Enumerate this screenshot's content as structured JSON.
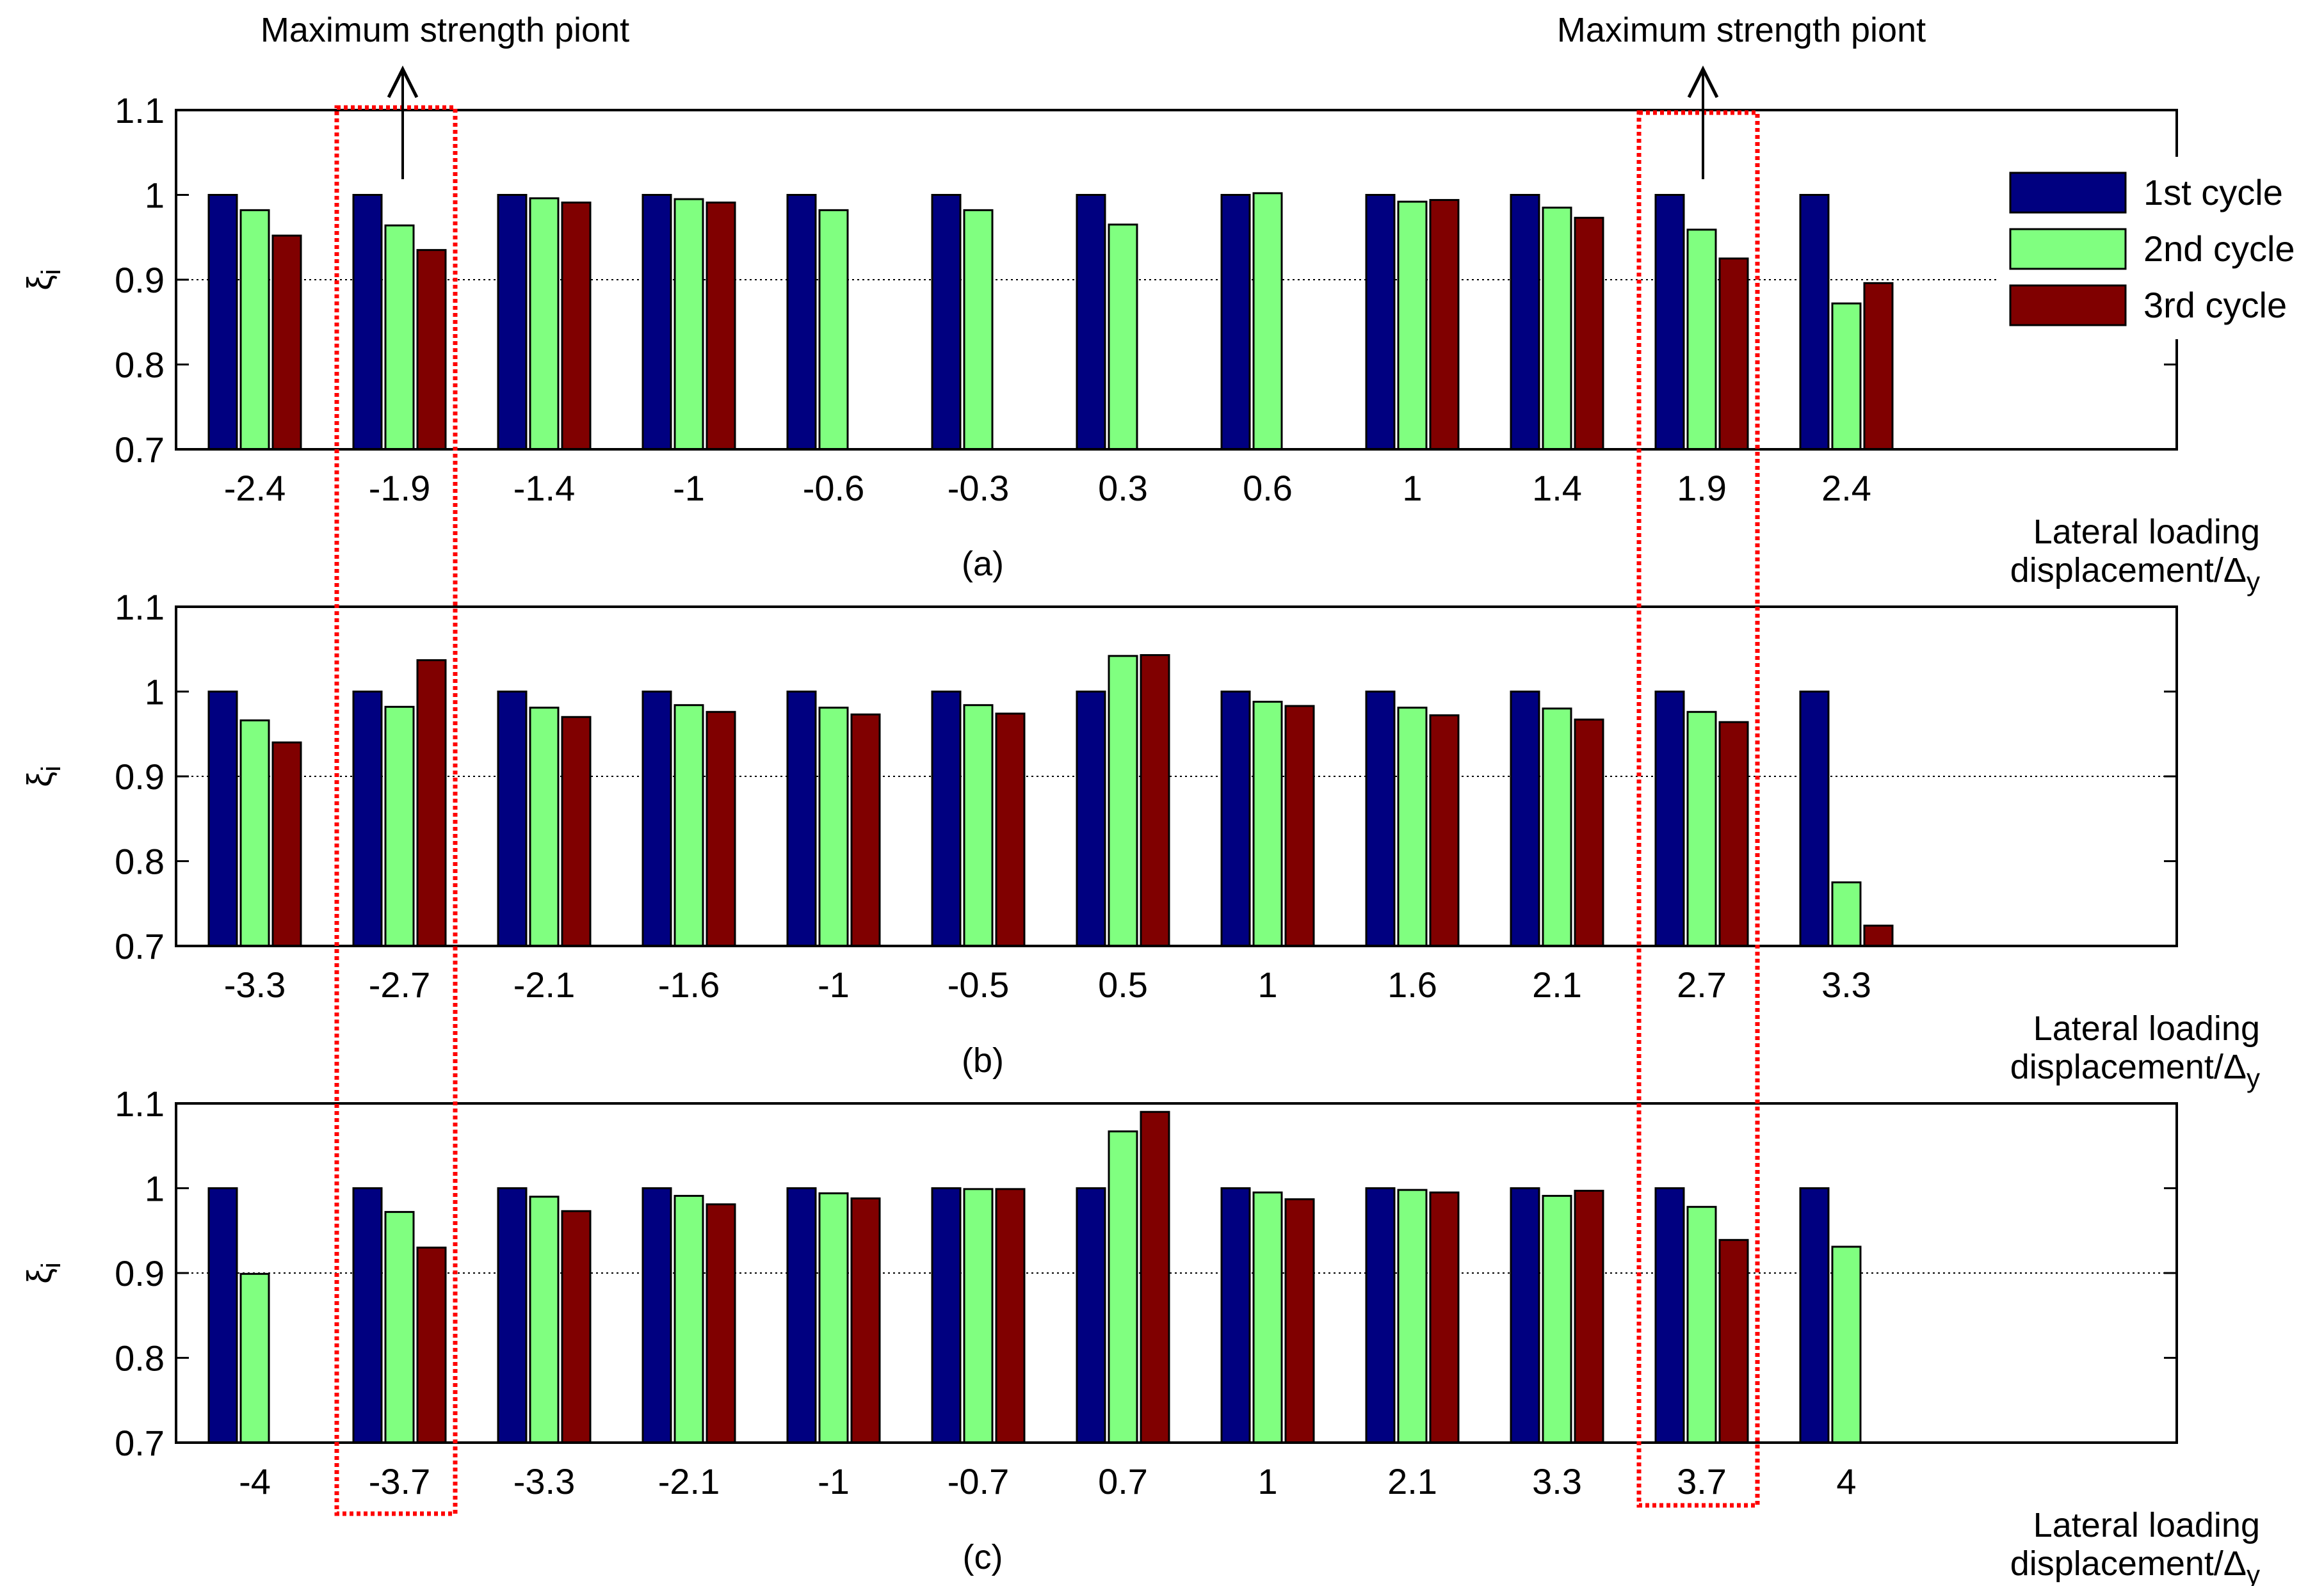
{
  "colors": {
    "series": [
      "#000080",
      "#80ff80",
      "#800000"
    ],
    "highlight_box": "#ff0000",
    "reference_line": "#000000",
    "axis": "#000000"
  },
  "legend": {
    "entries": [
      "1st cycle",
      "2nd cycle",
      "3rd cycle"
    ],
    "placement": "right of top panel"
  },
  "annotations": {
    "left": "Maximum strength piont",
    "right": "Maximum strength piont"
  },
  "chart_data": [
    {
      "type": "bar",
      "panel_label": "(a)",
      "categories": [
        "-2.4",
        "-1.9",
        "-1.4",
        "-1",
        "-0.6",
        "-0.3",
        "0.3",
        "0.6",
        "1",
        "1.4",
        "1.9",
        "2.4"
      ],
      "series": [
        {
          "name": "1st cycle",
          "values": [
            1,
            1,
            1,
            1,
            1,
            1,
            1,
            1,
            1,
            1,
            1,
            1
          ]
        },
        {
          "name": "2nd cycle",
          "values": [
            0.982,
            0.964,
            0.996,
            0.995,
            0.982,
            0.982,
            0.965,
            1.002,
            0.992,
            0.985,
            0.959,
            0.872
          ]
        },
        {
          "name": "3rd cycle",
          "values": [
            0.952,
            0.935,
            0.991,
            0.991,
            null,
            null,
            null,
            null,
            0.994,
            0.973,
            0.925,
            0.896
          ]
        }
      ],
      "ylabel": "ξi",
      "xlabel_line1": "Lateral loading",
      "xlabel_line2": "displacement/Δy",
      "ylim": [
        0.7,
        1.1
      ],
      "yticks": [
        "0.7",
        "0.8",
        "0.9",
        "1",
        "1.1"
      ],
      "reference_line": 0.9,
      "highlighted_categories": [
        "-1.9",
        "1.9"
      ]
    },
    {
      "type": "bar",
      "panel_label": "(b)",
      "categories": [
        "-3.3",
        "-2.7",
        "-2.1",
        "-1.6",
        "-1",
        "-0.5",
        "0.5",
        "1",
        "1.6",
        "2.1",
        "2.7",
        "3.3"
      ],
      "series": [
        {
          "name": "1st cycle",
          "values": [
            1,
            1,
            1,
            1,
            1,
            1,
            1,
            1,
            1,
            1,
            1,
            1
          ]
        },
        {
          "name": "2nd cycle",
          "values": [
            0.966,
            0.982,
            0.981,
            0.984,
            0.981,
            0.984,
            1.042,
            0.988,
            0.981,
            0.98,
            0.976,
            0.775
          ]
        },
        {
          "name": "3rd cycle",
          "values": [
            0.94,
            1.037,
            0.97,
            0.976,
            0.973,
            0.974,
            1.043,
            0.983,
            0.972,
            0.967,
            0.964,
            0.724
          ]
        }
      ],
      "ylabel": "ξi",
      "xlabel_line1": "Lateral loading",
      "xlabel_line2": "displacement/Δy",
      "ylim": [
        0.7,
        1.1
      ],
      "yticks": [
        "0.7",
        "0.8",
        "0.9",
        "1",
        "1.1"
      ],
      "reference_line": 0.9,
      "highlighted_categories": [
        "-2.7",
        "2.7"
      ]
    },
    {
      "type": "bar",
      "panel_label": "(c)",
      "categories": [
        "-4",
        "-3.7",
        "-3.3",
        "-2.1",
        "-1",
        "-0.7",
        "0.7",
        "1",
        "2.1",
        "3.3",
        "3.7",
        "4"
      ],
      "series": [
        {
          "name": "1st cycle",
          "values": [
            1,
            1,
            1,
            1,
            1,
            1,
            1,
            1,
            1,
            1,
            1,
            1
          ]
        },
        {
          "name": "2nd cycle",
          "values": [
            0.899,
            0.972,
            0.99,
            0.991,
            0.994,
            0.999,
            1.067,
            0.995,
            0.998,
            0.991,
            0.978,
            0.931
          ]
        },
        {
          "name": "3rd cycle",
          "values": [
            null,
            0.93,
            0.973,
            0.981,
            0.988,
            0.999,
            1.09,
            0.987,
            0.995,
            0.997,
            0.939,
            null
          ]
        }
      ],
      "ylabel": "ξi",
      "xlabel_line1": "Lateral loading",
      "xlabel_line2": "displacement/Δy",
      "ylim": [
        0.7,
        1.1
      ],
      "yticks": [
        "0.7",
        "0.8",
        "0.9",
        "1",
        "1.1"
      ],
      "reference_line": 0.9,
      "highlighted_categories": [
        "-3.7",
        "3.7"
      ]
    }
  ]
}
